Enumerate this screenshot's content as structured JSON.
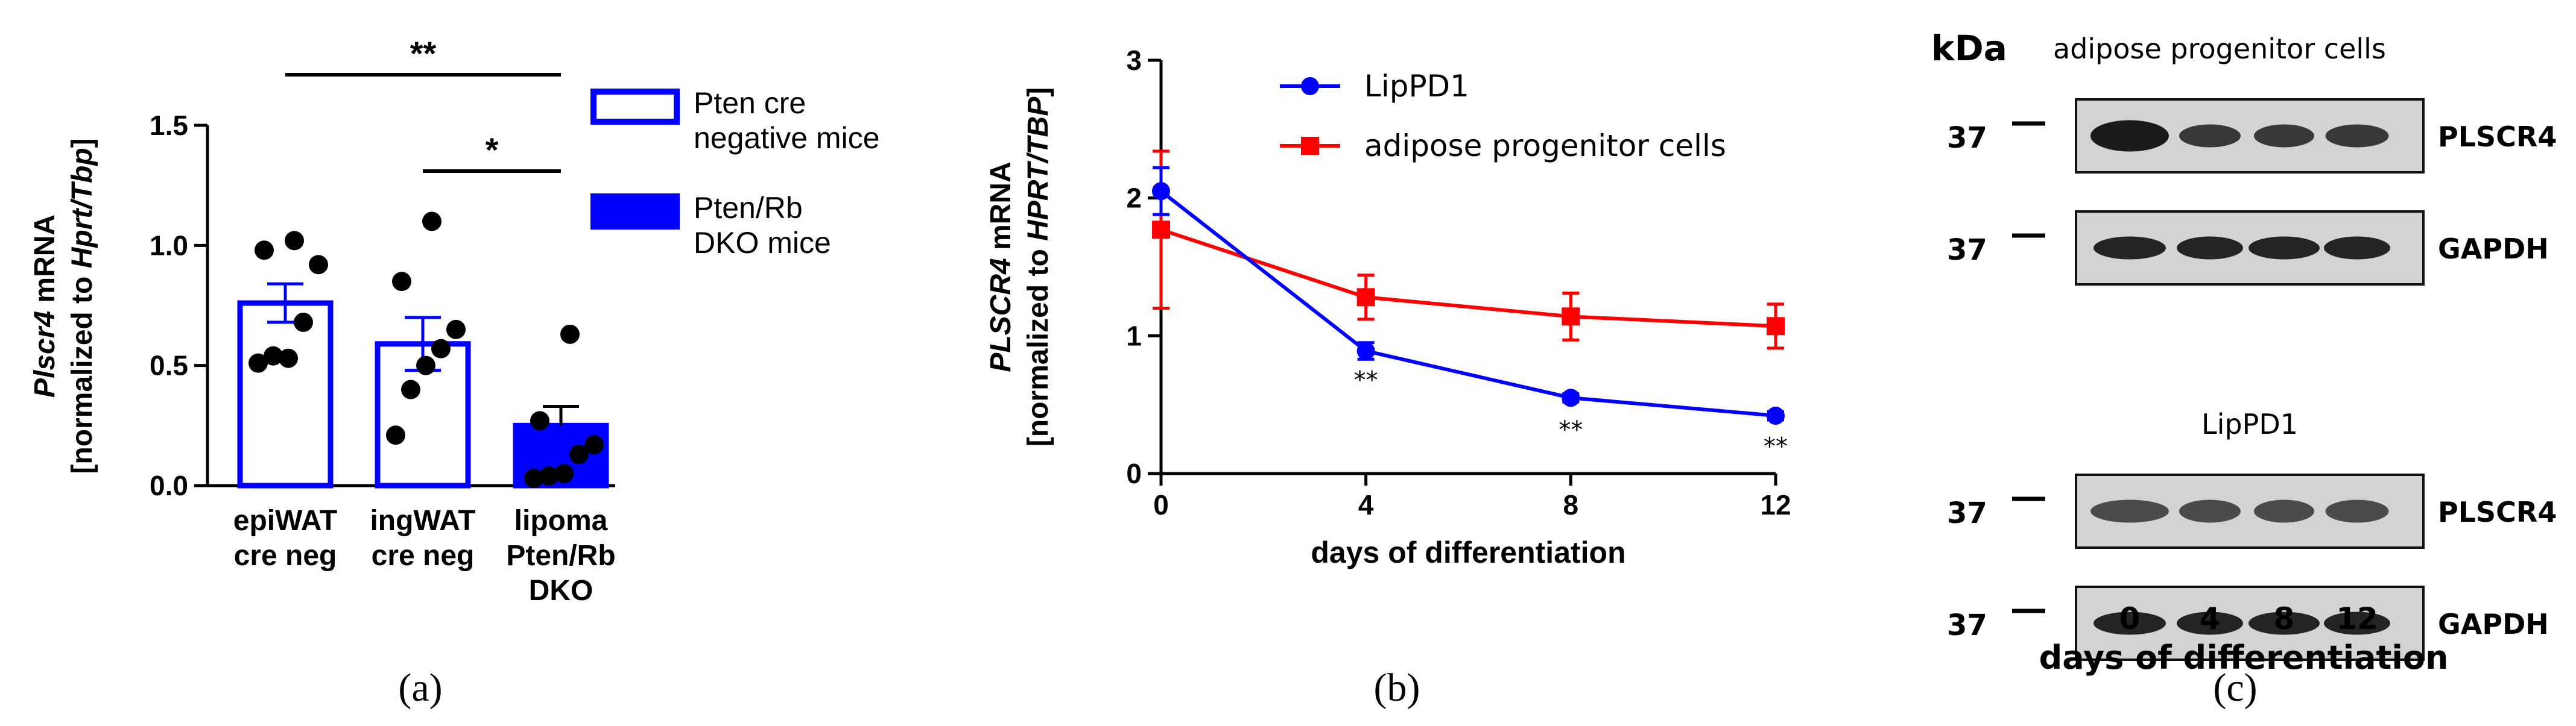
{
  "panels": {
    "a": "(a)",
    "b": "(b)",
    "c": "(c)"
  },
  "colors": {
    "blue": "#0000ff",
    "red": "#ff0000",
    "black": "#000000"
  },
  "chart_data": [
    {
      "type": "bar",
      "panel": "a",
      "ylabel_italic": "Plscr4",
      "ylabel_rest": " mRNA",
      "ylabel2_pre": "[normalized to ",
      "ylabel2_italic": "Hprt/Tbp",
      "ylabel2_post": "]",
      "ylim": [
        0,
        1.5
      ],
      "yticks": [
        "0.0",
        "0.5",
        "1.0",
        "1.5"
      ],
      "ytick_values": [
        0,
        0.5,
        1.0,
        1.5
      ],
      "categories": [
        [
          "epiWAT",
          "cre neg"
        ],
        [
          "ingWAT",
          "cre neg"
        ],
        [
          "lipoma",
          "Pten/Rb",
          "DKO"
        ]
      ],
      "values": [
        0.76,
        0.59,
        0.25
      ],
      "sem": [
        0.08,
        0.11,
        0.08
      ],
      "fill": [
        "none",
        "none",
        "blue"
      ],
      "points": [
        [
          0.51,
          0.54,
          0.53,
          0.68,
          0.92,
          0.98,
          1.02
        ],
        [
          0.21,
          0.4,
          0.5,
          0.57,
          0.65,
          0.85,
          1.1
        ],
        [
          0.03,
          0.04,
          0.05,
          0.13,
          0.17,
          0.27,
          0.63
        ]
      ],
      "significance": [
        {
          "from": 0,
          "to": 2,
          "label": "**"
        },
        {
          "from": 1,
          "to": 2,
          "label": "*"
        }
      ],
      "legend": [
        {
          "lines": [
            "Pten cre",
            "negative mice"
          ],
          "fill": "none"
        },
        {
          "lines": [
            "Pten/Rb",
            "DKO mice"
          ],
          "fill": "blue"
        }
      ]
    },
    {
      "type": "line",
      "panel": "b",
      "ylabel_italic": "PLSCR4",
      "ylabel_rest": " mRNA",
      "ylabel2_pre": "[normalized to ",
      "ylabel2_italic": "HPRT/TBP",
      "ylabel2_post": "]",
      "xlabel": "days of differentiation",
      "x": [
        0,
        4,
        8,
        12
      ],
      "xticks": [
        "0",
        "4",
        "8",
        "12"
      ],
      "xlim": [
        0,
        12
      ],
      "ylim": [
        0,
        3
      ],
      "yticks": [
        "0",
        "1",
        "2",
        "3"
      ],
      "series": [
        {
          "name": "LipPD1",
          "values": [
            2.05,
            0.89,
            0.55,
            0.42
          ],
          "err": [
            0.17,
            0.06,
            0.03,
            0.03
          ],
          "marker": "circle",
          "color": "blue"
        },
        {
          "name": "adipose progenitor cells",
          "values": [
            1.77,
            1.28,
            1.14,
            1.07
          ],
          "err": [
            0.57,
            0.16,
            0.17,
            0.16
          ],
          "marker": "square",
          "color": "red"
        }
      ],
      "annotations": [
        {
          "x": 4,
          "y": 0.68,
          "label": "**"
        },
        {
          "x": 8,
          "y": 0.32,
          "label": "**"
        },
        {
          "x": 12,
          "y": 0.2,
          "label": "**"
        }
      ],
      "legend_position": "top-right"
    },
    {
      "type": "table",
      "panel": "c",
      "kda_label": "kDa",
      "blocks": [
        {
          "title": "adipose progenitor cells",
          "rows": [
            {
              "marker": "37",
              "label": "PLSCR4"
            },
            {
              "marker": "37",
              "label": "GAPDH"
            }
          ]
        },
        {
          "title": "LipPD1",
          "rows": [
            {
              "marker": "37",
              "label": "PLSCR4"
            },
            {
              "marker": "37",
              "label": "GAPDH"
            }
          ]
        }
      ],
      "lanes": [
        "0",
        "4",
        "8",
        "12"
      ],
      "xlabel": "days of differentiation"
    }
  ]
}
